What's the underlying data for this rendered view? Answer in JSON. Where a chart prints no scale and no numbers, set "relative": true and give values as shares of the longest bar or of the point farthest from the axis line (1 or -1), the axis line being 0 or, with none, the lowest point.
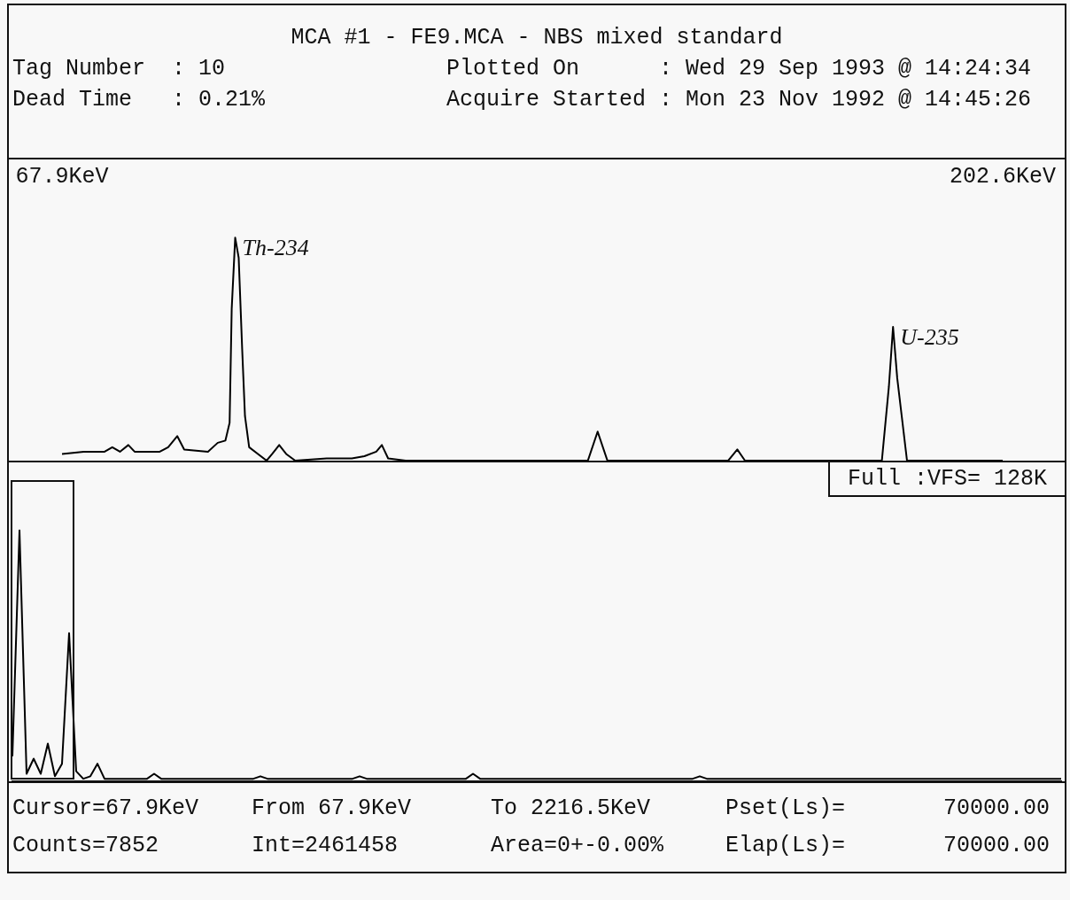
{
  "chart_data": [
    {
      "type": "line",
      "title": "MCA #1 - FE9.MCA - NBS mixed standard",
      "relative": true,
      "marker": "none",
      "legend": false,
      "grid": false,
      "tick_labels": "x",
      "annotations": [
        "Tag Number  : 10",
        "Plotted On      : Wed 29 Sep 1993 @ 14:24:34",
        "Dead Time   : 0.21%",
        "Acquire Started : Mon 23 Nov 1992 @ 14:45:26",
        {
          "text": "Th-234",
          "x": 92.7,
          "y": 1
        },
        {
          "text": "U-235",
          "x": 186.9,
          "y": 0.6
        }
      ],
      "xlim": [
        67.9,
        202.6
      ],
      "xticks": [
        {
          "value": 67.9,
          "label": "67.9KeV"
        },
        {
          "value": 202.6,
          "label": "202.6KeV"
        }
      ],
      "series": [
        {
          "color": "#000000",
          "x": [
            67.9,
            71.0,
            74.0,
            75.1,
            76.2,
            77.4,
            78.3,
            81.9,
            83.1,
            84.4,
            85.4,
            88.8,
            90.2,
            91.3,
            91.9,
            92.2,
            92.7,
            93.2,
            93.7,
            94.1,
            94.7,
            97.2,
            98.0,
            99.0,
            100.0,
            101.3,
            105.8,
            109.4,
            111.2,
            112.9,
            113.7,
            114.6,
            117.1,
            135.6,
            143.2,
            144.6,
            146.0,
            163.3,
            164.6,
            165.7,
            185.3,
            186.3,
            186.9,
            187.5,
            188.9,
            202.6
          ],
          "values": [
            0.03,
            0.04,
            0.04,
            0.06,
            0.04,
            0.07,
            0.04,
            0.04,
            0.06,
            0.11,
            0.05,
            0.04,
            0.08,
            0.09,
            0.17,
            0.68,
            1,
            0.91,
            0.5,
            0.2,
            0.06,
            0,
            0.03,
            0.07,
            0.03,
            0,
            0.01,
            0.01,
            0.02,
            0.04,
            0.07,
            0.01,
            0,
            0,
            0,
            0.13,
            0,
            0,
            0.05,
            0,
            0,
            0.33,
            0.6,
            0.37,
            0,
            0
          ]
        }
      ]
    },
    {
      "type": "line",
      "relative": true,
      "marker": "none",
      "legend": false,
      "grid": false,
      "tick_labels": false,
      "annotations": [
        "Full :VFS= 128K",
        "Cursor=67.9KeV",
        "From 67.9KeV",
        "To 2216.5KeV",
        "Pset(Ls)=",
        "70000.00",
        "Counts=7852",
        "Int=2461458",
        "Area=0+-0.00%",
        "Elap(Ls)=",
        "70000.00"
      ],
      "categories": [
        null,
        null,
        null,
        null,
        null,
        null,
        null,
        null,
        null,
        null,
        null,
        null,
        null,
        null,
        null,
        null,
        null,
        null,
        null,
        null,
        null,
        null,
        null,
        null,
        null,
        null,
        null,
        null,
        null,
        null,
        null,
        null,
        null,
        null,
        null,
        null,
        null,
        null,
        null,
        null,
        null,
        null,
        null,
        null,
        null,
        null,
        null,
        null,
        null,
        null,
        null,
        null,
        null,
        null,
        null,
        null,
        null,
        null,
        null,
        null,
        null,
        null,
        null,
        null,
        null,
        null,
        null,
        null,
        null,
        null,
        null,
        null,
        null,
        null,
        null,
        null,
        null,
        null,
        null,
        null,
        null,
        null,
        null,
        null,
        null,
        null,
        null,
        null,
        null,
        null,
        null,
        null,
        null,
        null,
        null,
        null,
        null,
        null,
        null,
        null,
        null,
        null,
        null,
        null,
        null,
        null,
        null,
        null,
        null,
        null,
        null,
        null,
        null,
        null,
        null,
        null,
        null,
        null,
        null,
        null,
        null,
        null,
        null,
        null,
        null,
        null,
        null,
        null,
        null,
        null,
        null,
        null,
        null,
        null,
        null,
        null,
        null,
        null,
        null,
        null,
        null,
        null,
        null,
        null,
        null,
        null,
        null,
        null,
        null
      ],
      "series": [
        {
          "color": "#000000",
          "values": [
            0.1,
            1,
            0.03,
            0.09,
            0.03,
            0.15,
            0.02,
            0.07,
            0.59,
            0.04,
            0.01,
            0.02,
            0.07,
            0.01,
            0.01,
            0.01,
            0.01,
            0.01,
            0.01,
            0.01,
            0.03,
            0.01,
            0.01,
            0.01,
            0.01,
            0.01,
            0.01,
            0.01,
            0.01,
            0.01,
            0.01,
            0.01,
            0.01,
            0.01,
            0.01,
            0.02,
            0.01,
            0.01,
            0.01,
            0.01,
            0.01,
            0.01,
            0.01,
            0.01,
            0.01,
            0.01,
            0.01,
            0.01,
            0.01,
            0.02,
            0.01,
            0.01,
            0.01,
            0.01,
            0.01,
            0.01,
            0.01,
            0.01,
            0.01,
            0.01,
            0.01,
            0.01,
            0.01,
            0.01,
            0.01,
            0.03,
            0.01,
            0.01,
            0.01,
            0.01,
            0.01,
            0.01,
            0.01,
            0.01,
            0.01,
            0.01,
            0.01,
            0.01,
            0.01,
            0.01,
            0.01,
            0.01,
            0.01,
            0.01,
            0.01,
            0.01,
            0.01,
            0.01,
            0.01,
            0.01,
            0.01,
            0.01,
            0.01,
            0.01,
            0.01,
            0.01,
            0.01,
            0.02,
            0.01,
            0.01,
            0.01,
            0.01,
            0.01,
            0.01,
            0.01,
            0.01,
            0.01,
            0.01,
            0.01,
            0.01,
            0.01,
            0.01,
            0.01,
            0.01,
            0.01,
            0.01,
            0.01,
            0.01,
            0.01,
            0.01,
            0.01,
            0.01,
            0.01,
            0.01,
            0.01,
            0.01,
            0.01,
            0.01,
            0.01,
            0.01,
            0.01,
            0.01,
            0.01,
            0.01,
            0.01,
            0.01,
            0.01,
            0.01,
            0.01,
            0.01,
            0.01,
            0.01,
            0.01,
            0.01,
            0.01,
            0.01,
            0.01,
            0.01,
            0.01
          ]
        }
      ]
    }
  ]
}
